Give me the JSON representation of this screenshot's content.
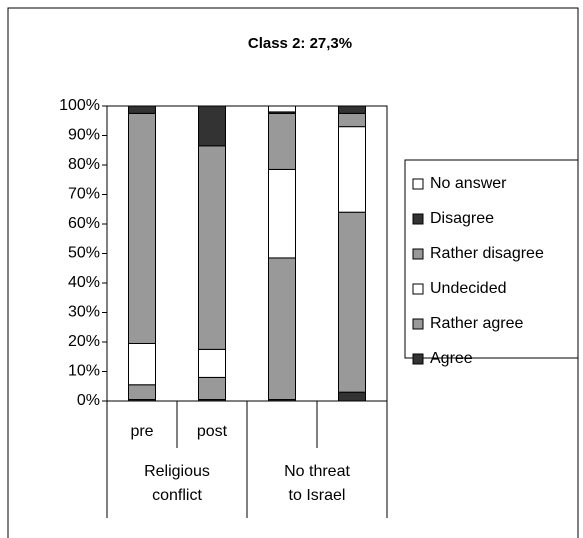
{
  "chart_data": {
    "type": "stacked_bar",
    "title": "Class 2: 27,3%",
    "categories": [
      "pre",
      "post",
      null,
      null
    ],
    "groups": [
      "Religious conflict",
      "No threat to Israel"
    ],
    "series": [
      {
        "name": "Agree",
        "color": "#333333",
        "values": [
          0.5,
          0.5,
          0.5,
          3
        ]
      },
      {
        "name": "Rather agree",
        "color": "#999999",
        "values": [
          5,
          7.5,
          48,
          61
        ]
      },
      {
        "name": "Undecided",
        "color": "#ffffff",
        "values": [
          14,
          9.5,
          30,
          29
        ]
      },
      {
        "name": "Rather disagree",
        "color": "#999999",
        "values": [
          78,
          69,
          19,
          4.5
        ]
      },
      {
        "name": "Disagree",
        "color": "#333333",
        "values": [
          2.5,
          13.5,
          0.5,
          2.5
        ]
      },
      {
        "name": "No answer",
        "color": "#ffffff",
        "values": [
          0,
          0,
          2,
          0
        ]
      }
    ],
    "ylim": [
      0,
      100
    ],
    "yticks": [
      {
        "value": 0,
        "label": "0%"
      },
      {
        "value": 10,
        "label": "10%"
      },
      {
        "value": 20,
        "label": "20%"
      },
      {
        "value": 30,
        "label": "30%"
      },
      {
        "value": 40,
        "label": "40%"
      },
      {
        "value": 50,
        "label": "50%"
      },
      {
        "value": 60,
        "label": "60%"
      },
      {
        "value": 70,
        "label": "70%"
      },
      {
        "value": 80,
        "label": "80%"
      },
      {
        "value": 90,
        "label": "90%"
      },
      {
        "value": 100,
        "label": "100%"
      }
    ],
    "legend": "right"
  }
}
